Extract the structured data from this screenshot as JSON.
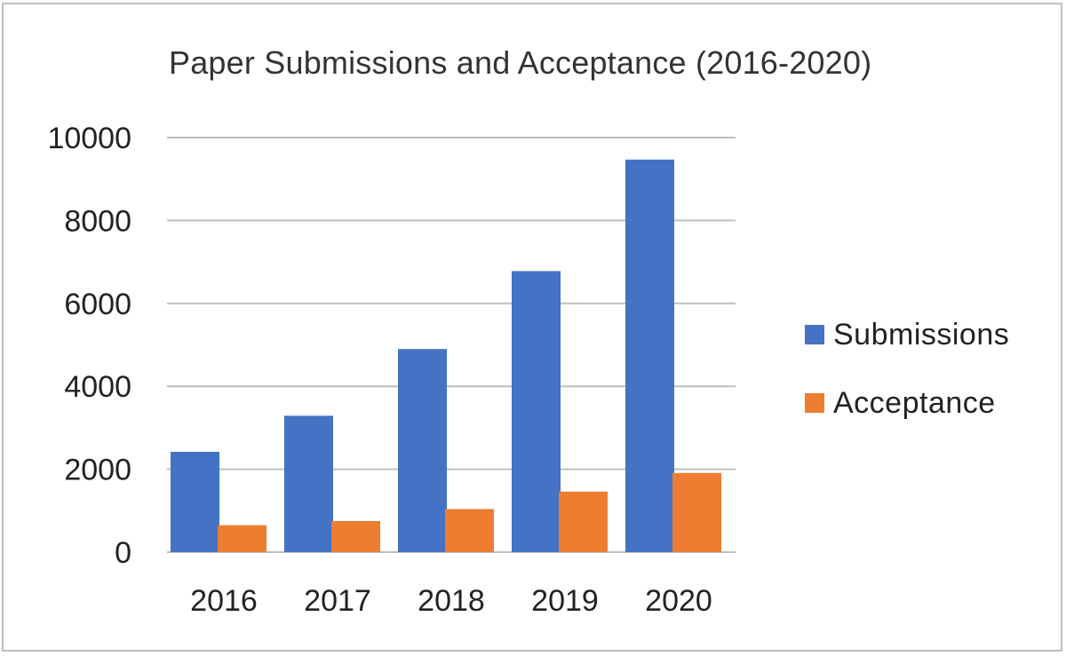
{
  "chart_data": {
    "type": "bar",
    "title": "Paper Submissions and Acceptance (2016-2020)",
    "categories": [
      "2016",
      "2017",
      "2018",
      "2019",
      "2020"
    ],
    "series": [
      {
        "name": "Submissions",
        "values": [
          2420,
          3290,
          4900,
          6780,
          9470
        ],
        "color": "#4472c4"
      },
      {
        "name": "Acceptance",
        "values": [
          650,
          750,
          1040,
          1460,
          1910
        ],
        "color": "#ed7d31"
      }
    ],
    "ylim": [
      0,
      10000
    ],
    "yticks": [
      "0",
      "2000",
      "4000",
      "6000",
      "8000",
      "10000"
    ],
    "xlabel": "",
    "ylabel": "",
    "grid": true,
    "legend_position": "right"
  }
}
